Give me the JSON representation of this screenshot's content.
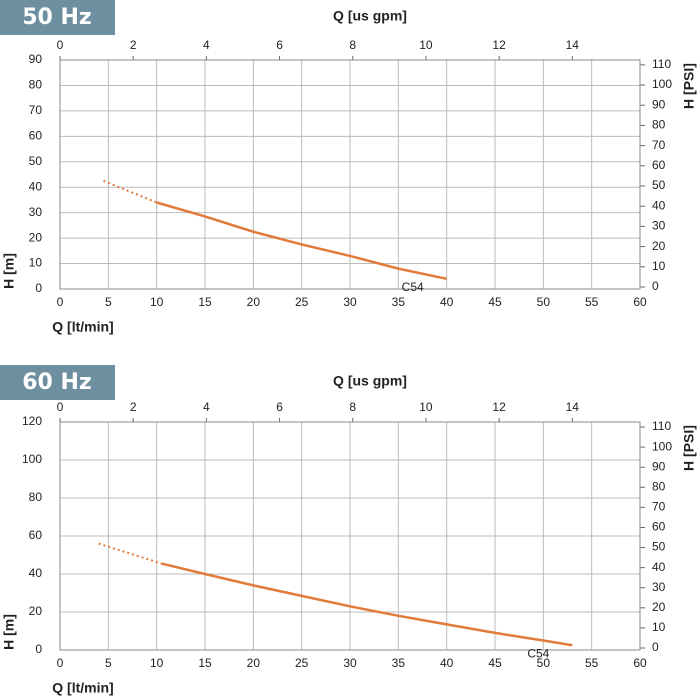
{
  "chart_data": [
    {
      "type": "line",
      "title": "50 Hz",
      "x_label": "Q [lt/min]",
      "x2_label": "Q [us gpm]",
      "y_label": "H [m]",
      "y2_label": "H [PSI]",
      "xlim": [
        0,
        60
      ],
      "xticks": [
        0,
        5,
        10,
        15,
        20,
        25,
        30,
        35,
        40,
        45,
        50,
        55,
        60
      ],
      "x2lim": [
        0,
        15.85
      ],
      "x2ticks": [
        0,
        2,
        4,
        6,
        8,
        10,
        12,
        14
      ],
      "ylim": [
        0,
        90
      ],
      "yticks": [
        0,
        10,
        20,
        30,
        40,
        50,
        60,
        70,
        80,
        90
      ],
      "y2lim": [
        -1,
        112.4
      ],
      "y2ticks": [
        0,
        10,
        20,
        30,
        40,
        50,
        60,
        70,
        80,
        90,
        100,
        110
      ],
      "grid": true,
      "series": [
        {
          "color": "#e07b39",
          "style": "dotted",
          "x": [
            4.5,
            10
          ],
          "values": [
            42.5,
            34
          ]
        },
        {
          "name": "C54",
          "color": "#e07b39",
          "style": "solid",
          "x": [
            10,
            15,
            20,
            25,
            30,
            35,
            40
          ],
          "values": [
            34,
            28.5,
            22.5,
            17.5,
            13,
            8,
            4
          ]
        }
      ]
    },
    {
      "type": "line",
      "title": "60 Hz",
      "x_label": "Q [lt/min]",
      "x2_label": "Q [us gpm]",
      "y_label": "H [m]",
      "y2_label": "H [PSI]",
      "xlim": [
        0,
        60
      ],
      "xticks": [
        0,
        5,
        10,
        15,
        20,
        25,
        30,
        35,
        40,
        45,
        50,
        55,
        60
      ],
      "x2lim": [
        0,
        15.85
      ],
      "x2ticks": [
        0,
        2,
        4,
        6,
        8,
        10,
        12,
        14
      ],
      "ylim": [
        0,
        120
      ],
      "yticks": [
        0,
        20,
        40,
        60,
        80,
        100,
        120
      ],
      "y2lim": [
        -1,
        112.5
      ],
      "y2ticks": [
        0,
        10,
        20,
        30,
        40,
        50,
        60,
        70,
        80,
        90,
        100,
        110
      ],
      "grid": true,
      "series": [
        {
          "color": "#e07b39",
          "style": "dotted",
          "x": [
            4,
            10.5
          ],
          "values": [
            56,
            45.5
          ]
        },
        {
          "name": "C54",
          "color": "#e07b39",
          "style": "solid",
          "x": [
            10.5,
            15,
            20,
            25,
            30,
            35,
            40,
            45,
            50,
            53
          ],
          "values": [
            45.5,
            40,
            34,
            28.5,
            23,
            18,
            13.5,
            9,
            5,
            2.5
          ]
        }
      ]
    }
  ]
}
